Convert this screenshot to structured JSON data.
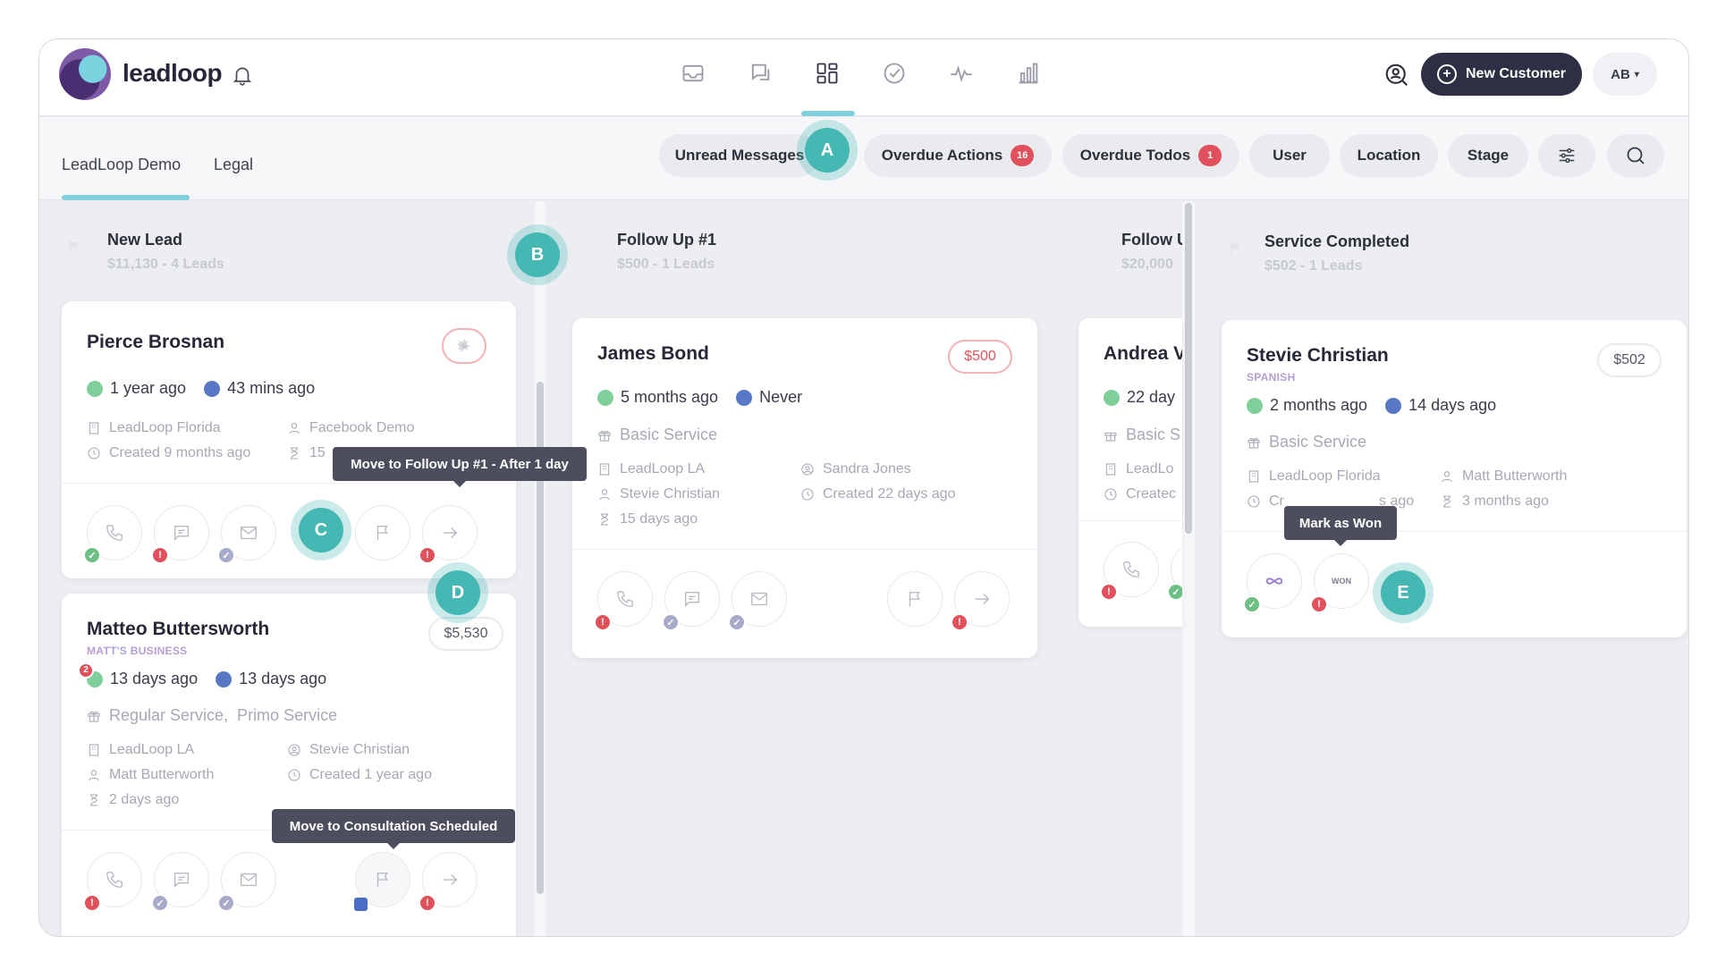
{
  "app": {
    "brand": "leadloop"
  },
  "header": {
    "new_customer_label": "New Customer",
    "avatar_initials": "AB",
    "avatar_caret": "▾",
    "nav_icons": [
      "inbox-icon",
      "chat-icon",
      "board-icon",
      "check-circle-icon",
      "activity-icon",
      "bar-chart-icon"
    ]
  },
  "subnav": {
    "tabs": [
      "LeadLoop Demo",
      "Legal"
    ],
    "filters": {
      "unread_messages": "Unread Messages",
      "overdue_actions": "Overdue Actions",
      "overdue_actions_count": "16",
      "overdue_todos": "Overdue Todos",
      "overdue_todos_count": "1",
      "user": "User",
      "location": "Location",
      "stage": "Stage"
    }
  },
  "hotspots": {
    "a": "A",
    "b": "B",
    "c": "C",
    "d": "D",
    "e": "E"
  },
  "columns": {
    "new_lead": {
      "title": "New Lead",
      "summary": "$11,130 - 4 Leads"
    },
    "follow_up_1": {
      "title": "Follow Up #1",
      "summary": "$500 - 1 Leads"
    },
    "follow_up_2": {
      "title": "Follow U",
      "summary": "$20,000"
    },
    "service_completed": {
      "title": "Service Completed",
      "summary": "$502 - 1 Leads"
    }
  },
  "cards": {
    "pierce": {
      "name": "Pierce Brosnan",
      "contact_time": "1 year ago",
      "activity_time": "43 mins ago",
      "location": "LeadLoop Florida",
      "source": "Facebook Demo",
      "created": "Created 9 months ago",
      "duration": "15"
    },
    "matteo": {
      "name": "Matteo Buttersworth",
      "company": "MATT'S BUSINESS",
      "price": "$5,530",
      "notify_count": "2",
      "contact_time": "13 days ago",
      "activity_time": "13 days ago",
      "services": "Regular Service,  Primo Service",
      "location": "LeadLoop LA",
      "assignee": "Stevie Christian",
      "contact": "Matt Butterworth",
      "created": "Created 1 year ago",
      "duration": "2 days ago"
    },
    "james": {
      "name": "James Bond",
      "price": "$500",
      "contact_time": "5 months ago",
      "activity_time": "Never",
      "services": "Basic Service",
      "location": "LeadLoop LA",
      "assignee": "Sandra Jones",
      "contact": "Stevie Christian",
      "created": "Created 22 days ago",
      "duration": "15 days ago"
    },
    "andrea": {
      "name": "Andrea V",
      "contact_time": "22 day",
      "services": "Basic S",
      "location": "LeadLo",
      "created": "Createc"
    },
    "stevie": {
      "name": "Stevie Christian",
      "language": "SPANISH",
      "price": "$502",
      "contact_time": "2 months ago",
      "activity_time": "14 days ago",
      "services": "Basic Service",
      "location": "LeadLoop Florida",
      "contact": "Matt Butterworth",
      "created_start": "Cr",
      "created_end": "s ago",
      "duration": "3 months ago",
      "won_label": "WON"
    }
  },
  "tooltips": {
    "move_follow_up": "Move to Follow Up #1 - After 1 day",
    "move_consultation": "Move to Consultation Scheduled",
    "mark_won": "Mark as Won"
  },
  "colors": {
    "accent": "#7fcfdf",
    "brand_dark": "#2d2f45",
    "alert": "#e0515b",
    "success": "#6cc084",
    "hotspot": "#45b8b4"
  }
}
